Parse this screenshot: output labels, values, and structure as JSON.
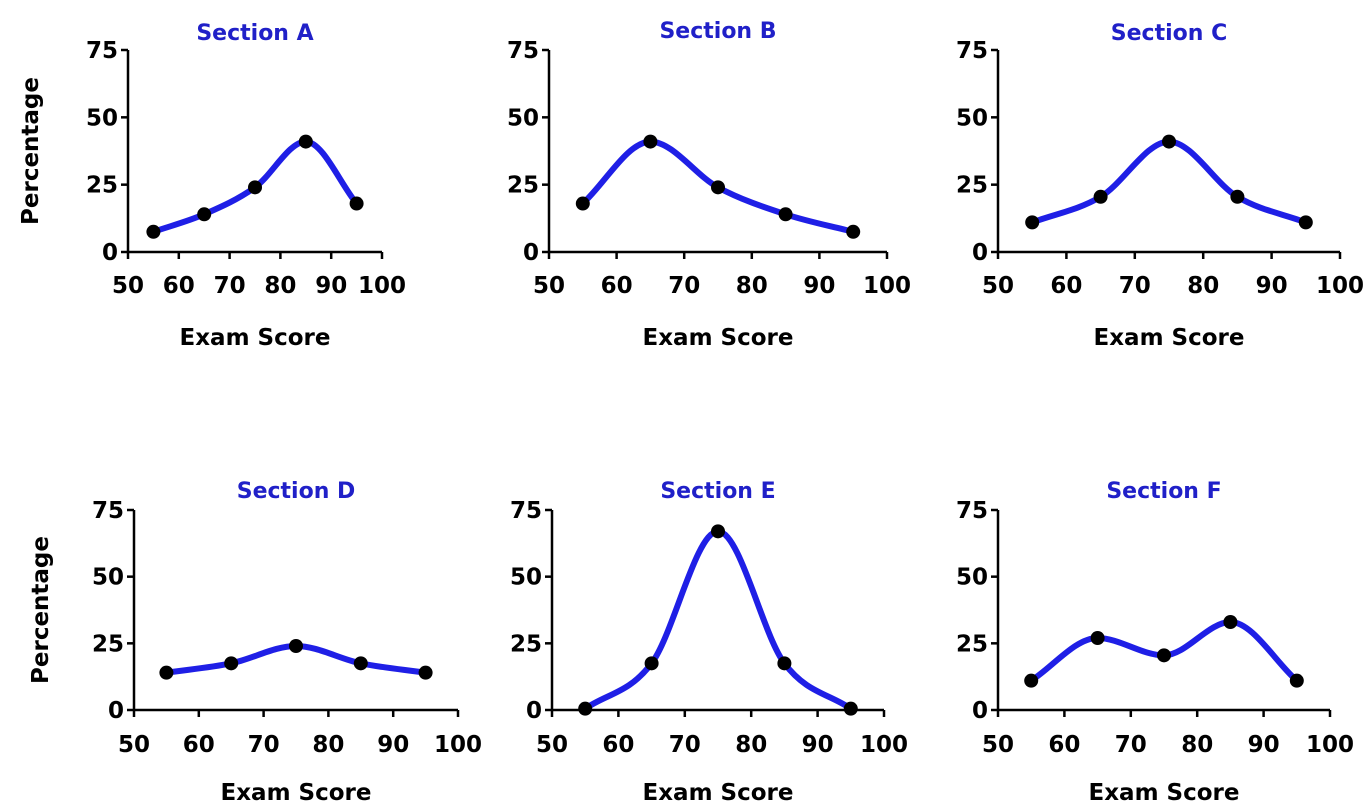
{
  "colors": {
    "line": "#1f1fe6",
    "title": "#2020c8",
    "point": "#000000",
    "axis": "#000000"
  },
  "chart_data": [
    {
      "type": "line",
      "title": "Section A",
      "xlabel": "Exam Score",
      "ylabel": "Percentage",
      "xlim": [
        50,
        100
      ],
      "ylim": [
        0,
        75
      ],
      "xticks": [
        "50",
        "60",
        "70",
        "80",
        "90",
        "100"
      ],
      "yticks": [
        "0",
        "25",
        "50",
        "75"
      ],
      "x": [
        55,
        65,
        75,
        85,
        95
      ],
      "values": [
        7.5,
        14,
        24,
        41,
        18
      ]
    },
    {
      "type": "line",
      "title": "Section B",
      "xlabel": "Exam Score",
      "ylabel": "",
      "xlim": [
        50,
        100
      ],
      "ylim": [
        0,
        75
      ],
      "xticks": [
        "50",
        "60",
        "70",
        "80",
        "90",
        "100"
      ],
      "yticks": [
        "0",
        "25",
        "50",
        "75"
      ],
      "x": [
        55,
        65,
        75,
        85,
        95
      ],
      "values": [
        18,
        41,
        24,
        14,
        7.5
      ]
    },
    {
      "type": "line",
      "title": "Section C",
      "xlabel": "Exam Score",
      "ylabel": "",
      "xlim": [
        50,
        100
      ],
      "ylim": [
        0,
        75
      ],
      "xticks": [
        "50",
        "60",
        "70",
        "80",
        "90",
        "100"
      ],
      "yticks": [
        "0",
        "25",
        "50",
        "75"
      ],
      "x": [
        55,
        65,
        75,
        85,
        95
      ],
      "values": [
        11,
        20.5,
        41,
        20.5,
        11
      ]
    },
    {
      "type": "line",
      "title": "Section D",
      "xlabel": "Exam Score",
      "ylabel": "Percentage",
      "xlim": [
        50,
        100
      ],
      "ylim": [
        0,
        75
      ],
      "xticks": [
        "50",
        "60",
        "70",
        "80",
        "90",
        "100"
      ],
      "yticks": [
        "0",
        "25",
        "50",
        "75"
      ],
      "x": [
        55,
        65,
        75,
        85,
        95
      ],
      "values": [
        14,
        17.5,
        24,
        17.5,
        14
      ]
    },
    {
      "type": "line",
      "title": "Section E",
      "xlabel": "Exam Score",
      "ylabel": "",
      "xlim": [
        50,
        100
      ],
      "ylim": [
        0,
        75
      ],
      "xticks": [
        "50",
        "60",
        "70",
        "80",
        "90",
        "100"
      ],
      "yticks": [
        "0",
        "25",
        "50",
        "75"
      ],
      "x": [
        55,
        65,
        75,
        85,
        95
      ],
      "values": [
        0.5,
        17.5,
        67,
        17.5,
        0.5
      ]
    },
    {
      "type": "line",
      "title": "Section F",
      "xlabel": "Exam Score",
      "ylabel": "",
      "xlim": [
        50,
        100
      ],
      "ylim": [
        0,
        75
      ],
      "xticks": [
        "50",
        "60",
        "70",
        "80",
        "90",
        "100"
      ],
      "yticks": [
        "0",
        "25",
        "50",
        "75"
      ],
      "x": [
        55,
        65,
        75,
        85,
        95
      ],
      "values": [
        11,
        27,
        20.5,
        33,
        11
      ]
    }
  ]
}
